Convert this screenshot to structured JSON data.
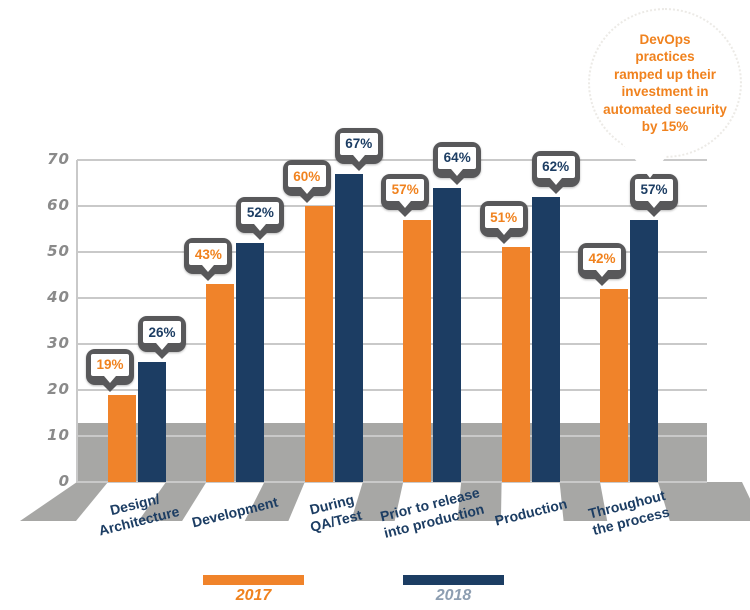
{
  "chart_data": {
    "type": "bar",
    "title": "",
    "categories": [
      "Design/\nArchitecture",
      "Development",
      "During\nQA/Test",
      "Prior to release\ninto production",
      "Production",
      "Throughout\nthe process"
    ],
    "series": [
      {
        "name": "2017",
        "color": "#F0832A",
        "label_color": "#F0821E",
        "values": [
          19,
          43,
          60,
          57,
          51,
          42
        ]
      },
      {
        "name": "2018",
        "color": "#1C3D63",
        "label_color": "#1C3D63",
        "values": [
          26,
          52,
          67,
          64,
          62,
          57
        ]
      }
    ],
    "value_suffix": "%",
    "ylim": [
      0,
      70
    ],
    "yticks": [
      0,
      10,
      20,
      30,
      40,
      50,
      60,
      70
    ],
    "grid": "horizontal",
    "legend_position": "bottom",
    "annotation": {
      "text": "DevOps practices ramped up their investment in automated security by 15%",
      "lines": [
        "DevOps",
        "practices",
        "ramped up their",
        "investment in",
        "automated security",
        "by 15%"
      ]
    }
  },
  "colors": {
    "orange": "#F0832A",
    "navy": "#1C3D63",
    "gray_band": "#A7A7A5",
    "gridline": "#C9C9C9",
    "badge_border": "#58585A",
    "axis_label": "#8A8A8A",
    "annotation_text": "#F0821E"
  }
}
